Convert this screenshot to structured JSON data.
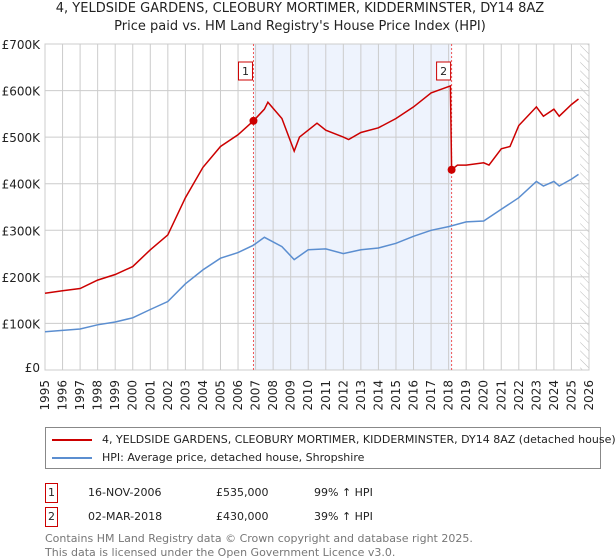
{
  "chart_data": {
    "type": "line",
    "title": "4, YELDSIDE GARDENS, CLEOBURY MORTIMER, KIDDERMINSTER, DY14 8AZ",
    "subtitle": "Price paid vs. HM Land Registry's House Price Index (HPI)",
    "xlim": [
      1995,
      2026
    ],
    "ylim": [
      0,
      700000
    ],
    "x_ticks": [
      "1995",
      "1996",
      "1997",
      "1998",
      "1999",
      "2000",
      "2001",
      "2002",
      "2003",
      "2004",
      "2005",
      "2006",
      "2007",
      "2008",
      "2009",
      "2010",
      "2011",
      "2012",
      "2013",
      "2014",
      "2015",
      "2016",
      "2017",
      "2018",
      "2019",
      "2020",
      "2021",
      "2022",
      "2023",
      "2024",
      "2025",
      "2026"
    ],
    "y_ticks": [
      {
        "v": 0,
        "label": "£0"
      },
      {
        "v": 100000,
        "label": "£100K"
      },
      {
        "v": 200000,
        "label": "£200K"
      },
      {
        "v": 300000,
        "label": "£300K"
      },
      {
        "v": 400000,
        "label": "£400K"
      },
      {
        "v": 500000,
        "label": "£500K"
      },
      {
        "v": 600000,
        "label": "£600K"
      },
      {
        "v": 700000,
        "label": "£700K"
      }
    ],
    "grid": true,
    "shaded_range": [
      2006.88,
      2018.17
    ],
    "forecast_hatch_from": 2025.5,
    "series": [
      {
        "name": "4, YELDSIDE GARDENS, CLEOBURY MORTIMER, KIDDERMINSTER, DY14 8AZ (detached house)",
        "color": "#cc0000",
        "x": [
          1995,
          1996,
          1997,
          1998,
          1999,
          2000,
          2001,
          2002,
          2003,
          2004,
          2005,
          2006,
          2006.88,
          2007.5,
          2007.7,
          2008.5,
          2009.2,
          2009.5,
          2010.5,
          2011,
          2012,
          2012.3,
          2013,
          2014,
          2015,
          2016,
          2017,
          2018.1,
          2018.17,
          2018.5,
          2019,
          2020,
          2020.3,
          2021,
          2021.5,
          2022,
          2023,
          2023.4,
          2024,
          2024.3,
          2025,
          2025.4
        ],
        "y": [
          165000,
          170000,
          175000,
          193000,
          205000,
          222000,
          258000,
          290000,
          370000,
          435000,
          480000,
          505000,
          535000,
          560000,
          575000,
          540000,
          470000,
          500000,
          530000,
          515000,
          500000,
          495000,
          510000,
          520000,
          540000,
          565000,
          595000,
          610000,
          430000,
          440000,
          440000,
          445000,
          440000,
          475000,
          480000,
          525000,
          565000,
          545000,
          560000,
          545000,
          570000,
          582000
        ]
      },
      {
        "name": "HPI: Average price, detached house, Shropshire",
        "color": "#5b8ed0",
        "x": [
          1995,
          1996,
          1997,
          1998,
          1999,
          2000,
          2001,
          2002,
          2003,
          2004,
          2005,
          2006,
          2006.88,
          2007.5,
          2008.5,
          2009.2,
          2010,
          2011,
          2012,
          2013,
          2014,
          2015,
          2016,
          2017,
          2018,
          2019,
          2020,
          2021,
          2022,
          2023,
          2023.4,
          2024,
          2024.3,
          2025,
          2025.4
        ],
        "y": [
          82000,
          85000,
          88000,
          97000,
          103000,
          112000,
          130000,
          147000,
          185000,
          215000,
          240000,
          252000,
          268000,
          285000,
          265000,
          237000,
          258000,
          260000,
          250000,
          258000,
          262000,
          272000,
          287000,
          300000,
          308000,
          318000,
          320000,
          345000,
          370000,
          405000,
          395000,
          405000,
          395000,
          410000,
          420000
        ]
      }
    ],
    "sales": [
      {
        "label": "1",
        "x": 2006.88,
        "y": 535000,
        "date": "16-NOV-2006",
        "price": "£535,000",
        "hpi": "99% ↑ HPI"
      },
      {
        "label": "2",
        "x": 2018.17,
        "y": 430000,
        "date": "02-MAR-2018",
        "price": "£430,000",
        "hpi": "39% ↑ HPI"
      }
    ]
  },
  "footer": {
    "line1": "Contains HM Land Registry data © Crown copyright and database right 2025.",
    "line2": "This data is licensed under the Open Government Licence v3.0."
  }
}
